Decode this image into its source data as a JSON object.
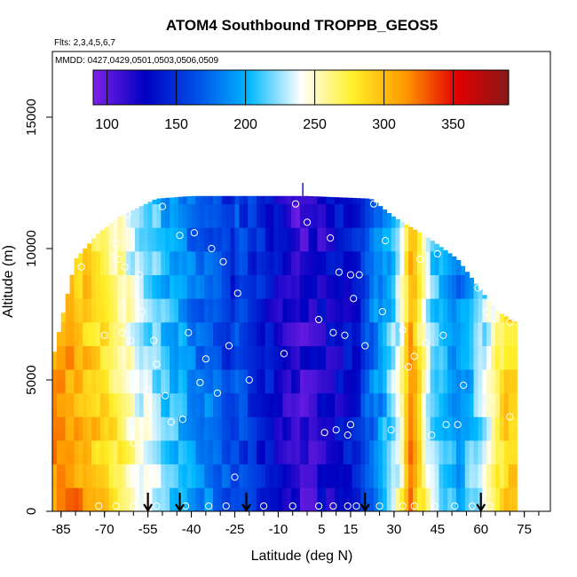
{
  "chart_data": {
    "type": "heatmap",
    "title": "ATOM4 Southbound TROPPB_GEOS5",
    "annotations": {
      "flights": "Flts: 2,3,4,5,6,7",
      "dates": "MMDD: 0427,0429,0501,0503,0506,0509"
    },
    "xlabel": "Latitude (deg N)",
    "ylabel": "Altitude (m)",
    "xlim": [
      -88,
      84
    ],
    "ylim": [
      0,
      17500
    ],
    "x_ticks": [
      -85,
      -70,
      -55,
      -40,
      -25,
      -10,
      5,
      15,
      30,
      45,
      60,
      75
    ],
    "x_tick_labels": [
      "-85",
      "-70",
      "-55",
      "-40",
      "-25",
      "-10",
      "5",
      "15",
      "30",
      "45",
      "60",
      "75"
    ],
    "x_minor_step": 5,
    "y_ticks": [
      0,
      5000,
      10000,
      15000
    ],
    "y_tick_labels": [
      "0",
      "5000",
      "10000",
      "15000"
    ],
    "colorbar": {
      "min": 90,
      "max": 390,
      "ticks": [
        100,
        150,
        200,
        250,
        300,
        350
      ],
      "tick_labels": [
        "100",
        "150",
        "200",
        "250",
        "300",
        "350"
      ],
      "colors": [
        "#7f22e8",
        "#0000c0",
        "#0050e8",
        "#00b8ff",
        "#ffffff",
        "#ffef28",
        "#ff9a00",
        "#e30000",
        "#881818"
      ]
    },
    "curtain_bands": [
      {
        "lat_min": -88,
        "lat_max": -73,
        "value": 320
      },
      {
        "lat_min": -73,
        "lat_max": -62,
        "value": 285
      },
      {
        "lat_min": -62,
        "lat_max": -50,
        "value": 240
      },
      {
        "lat_min": -50,
        "lat_max": -35,
        "value": 205
      },
      {
        "lat_min": -35,
        "lat_max": -20,
        "value": 170
      },
      {
        "lat_min": -20,
        "lat_max": 14,
        "value": 110
      },
      {
        "lat_min": 14,
        "lat_max": 21,
        "value": 140
      },
      {
        "lat_min": 21,
        "lat_max": 30,
        "value": 200
      },
      {
        "lat_min": 30,
        "lat_max": 34,
        "value": 250
      },
      {
        "lat_min": 34,
        "lat_max": 38,
        "value": 325
      },
      {
        "lat_min": 38,
        "lat_max": 48,
        "value": 230
      },
      {
        "lat_min": 48,
        "lat_max": 56,
        "value": 195
      },
      {
        "lat_min": 56,
        "lat_max": 66,
        "value": 235
      },
      {
        "lat_min": 66,
        "lat_max": 72,
        "value": 300
      }
    ],
    "flight_points": [
      {
        "lat": -83,
        "alt": 9600
      },
      {
        "lat": -78,
        "alt": 9300
      },
      {
        "lat": -70,
        "alt": 6700
      },
      {
        "lat": -66,
        "alt": 10200
      },
      {
        "lat": -65,
        "alt": 9600
      },
      {
        "lat": -64,
        "alt": 6800
      },
      {
        "lat": -63,
        "alt": 9300
      },
      {
        "lat": -62,
        "alt": 11300
      },
      {
        "lat": -61,
        "alt": 6500
      },
      {
        "lat": -60,
        "alt": 2600
      },
      {
        "lat": -58,
        "alt": 9000
      },
      {
        "lat": -57,
        "alt": 7600
      },
      {
        "lat": -55,
        "alt": 4600
      },
      {
        "lat": -53,
        "alt": 6500
      },
      {
        "lat": -52,
        "alt": 5600
      },
      {
        "lat": -50,
        "alt": 11600
      },
      {
        "lat": -49,
        "alt": 4400
      },
      {
        "lat": -47,
        "alt": 3400
      },
      {
        "lat": -44,
        "alt": 10500
      },
      {
        "lat": -43,
        "alt": 3500
      },
      {
        "lat": -41,
        "alt": 6800
      },
      {
        "lat": -39,
        "alt": 10600
      },
      {
        "lat": -37,
        "alt": 4900
      },
      {
        "lat": -35,
        "alt": 5800
      },
      {
        "lat": -33,
        "alt": 10000
      },
      {
        "lat": -31,
        "alt": 4500
      },
      {
        "lat": -29,
        "alt": 9500
      },
      {
        "lat": -27,
        "alt": 6300
      },
      {
        "lat": -25,
        "alt": 1300
      },
      {
        "lat": -24,
        "alt": 8300
      },
      {
        "lat": -20,
        "alt": 5000
      },
      {
        "lat": -8,
        "alt": 6000
      },
      {
        "lat": -4,
        "alt": 11700
      },
      {
        "lat": 0,
        "alt": 11000
      },
      {
        "lat": 4,
        "alt": 7300
      },
      {
        "lat": 6,
        "alt": 3000
      },
      {
        "lat": 8,
        "alt": 10400
      },
      {
        "lat": 9,
        "alt": 6800
      },
      {
        "lat": 10,
        "alt": 3100
      },
      {
        "lat": 11,
        "alt": 9100
      },
      {
        "lat": 13,
        "alt": 6700
      },
      {
        "lat": 14,
        "alt": 2900
      },
      {
        "lat": 15,
        "alt": 3300
      },
      {
        "lat": 15,
        "alt": 9000
      },
      {
        "lat": 16,
        "alt": 8100
      },
      {
        "lat": 18,
        "alt": 9000
      },
      {
        "lat": 20,
        "alt": 6300
      },
      {
        "lat": 23,
        "alt": 11700
      },
      {
        "lat": 26,
        "alt": 7600
      },
      {
        "lat": 27,
        "alt": 10300
      },
      {
        "lat": 29,
        "alt": 3100
      },
      {
        "lat": 33,
        "alt": 6900
      },
      {
        "lat": 35,
        "alt": 5500
      },
      {
        "lat": 37,
        "alt": 5900
      },
      {
        "lat": 39,
        "alt": 9600
      },
      {
        "lat": 41,
        "alt": 6400
      },
      {
        "lat": 43,
        "alt": 2900
      },
      {
        "lat": 45,
        "alt": 9800
      },
      {
        "lat": 47,
        "alt": 6700
      },
      {
        "lat": 48,
        "alt": 3300
      },
      {
        "lat": 52,
        "alt": 3300
      },
      {
        "lat": 54,
        "alt": 4800
      },
      {
        "lat": 59,
        "alt": 8500
      },
      {
        "lat": 62,
        "alt": 7600
      },
      {
        "lat": 70,
        "alt": 7200
      },
      {
        "lat": 70,
        "alt": 3600
      },
      {
        "lat": -72,
        "alt": 200
      },
      {
        "lat": -66,
        "alt": 200
      },
      {
        "lat": -60,
        "alt": 200
      },
      {
        "lat": -52,
        "alt": 200
      },
      {
        "lat": -42,
        "alt": 200
      },
      {
        "lat": -34,
        "alt": 200
      },
      {
        "lat": -28,
        "alt": 200
      },
      {
        "lat": -15,
        "alt": 200
      },
      {
        "lat": -5,
        "alt": 200
      },
      {
        "lat": 4,
        "alt": 200
      },
      {
        "lat": 9,
        "alt": 200
      },
      {
        "lat": 14,
        "alt": 200
      },
      {
        "lat": 17,
        "alt": 200
      },
      {
        "lat": 25,
        "alt": 200
      },
      {
        "lat": 33,
        "alt": 200
      },
      {
        "lat": 37,
        "alt": 200
      },
      {
        "lat": 44,
        "alt": 200
      },
      {
        "lat": 51,
        "alt": 200
      },
      {
        "lat": 57,
        "alt": 200
      },
      {
        "lat": 63,
        "alt": 200
      }
    ],
    "profile_markers": [
      {
        "lat": -55,
        "alt": 0
      },
      {
        "lat": -44,
        "alt": 0
      },
      {
        "lat": -21,
        "alt": 0
      },
      {
        "lat": 20,
        "alt": 0
      },
      {
        "lat": 60,
        "alt": 0
      }
    ]
  }
}
